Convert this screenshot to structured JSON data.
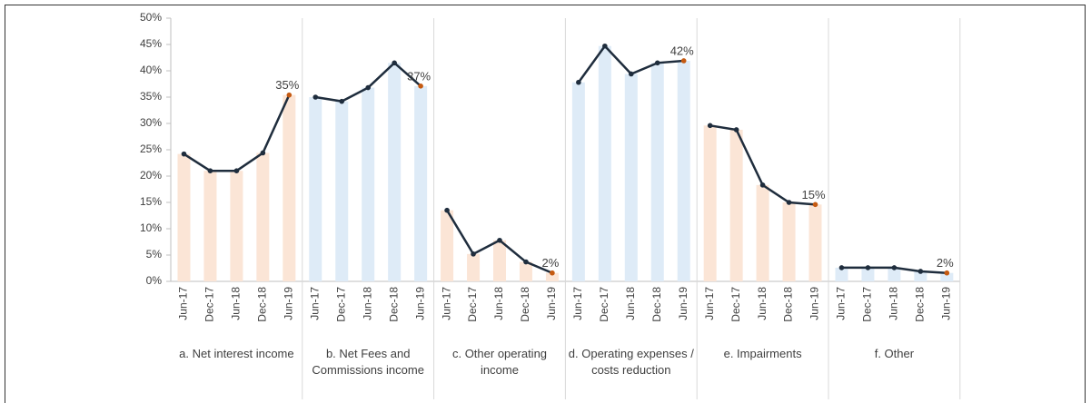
{
  "chart_data": {
    "type": "line",
    "ylim": [
      0,
      50
    ],
    "yticks": [
      {
        "value": 0,
        "label": "0%"
      },
      {
        "value": 5,
        "label": "5%"
      },
      {
        "value": 10,
        "label": "10%"
      },
      {
        "value": 15,
        "label": "15%"
      },
      {
        "value": 20,
        "label": "20%"
      },
      {
        "value": 25,
        "label": "25%"
      },
      {
        "value": 30,
        "label": "30%"
      },
      {
        "value": 35,
        "label": "35%"
      },
      {
        "value": 40,
        "label": "40%"
      },
      {
        "value": 45,
        "label": "45%"
      },
      {
        "value": 50,
        "label": "50%"
      }
    ],
    "line_color": "#1f2d3d",
    "highlight_color": "#c55a11",
    "panels": [
      {
        "label": "a. Net interest income",
        "bar_color": "#fbe5d6",
        "categories": [
          "Jun-17",
          "Dec-17",
          "Jun-18",
          "Dec-18",
          "Jun-19"
        ],
        "values": [
          24.2,
          21,
          21,
          24.4,
          35.4
        ],
        "value_labels": [
          null,
          null,
          null,
          null,
          "35%"
        ]
      },
      {
        "label": "b. Net Fees and Commissions income",
        "bar_color": "#deebf7",
        "categories": [
          "Jun-17",
          "Dec-17",
          "Jun-18",
          "Dec-18",
          "Jun-19"
        ],
        "values": [
          35,
          34.2,
          36.8,
          41.5,
          37.1
        ],
        "value_labels": [
          null,
          null,
          null,
          null,
          "37%"
        ]
      },
      {
        "label": "c. Other operating income",
        "bar_color": "#fbe5d6",
        "categories": [
          "Jun-17",
          "Dec-17",
          "Jun-18",
          "Dec-18",
          "Jun-19"
        ],
        "values": [
          13.5,
          5.2,
          7.8,
          3.7,
          1.6
        ],
        "value_labels": [
          null,
          null,
          null,
          null,
          "2%"
        ]
      },
      {
        "label": "d. Operating expenses / costs reduction",
        "bar_color": "#deebf7",
        "categories": [
          "Jun-17",
          "Dec-17",
          "Jun-18",
          "Dec-18",
          "Jun-19"
        ],
        "values": [
          37.8,
          44.7,
          39.4,
          41.5,
          41.9
        ],
        "value_labels": [
          null,
          null,
          null,
          null,
          "42%"
        ]
      },
      {
        "label": "e. Impairments",
        "bar_color": "#fbe5d6",
        "categories": [
          "Jun-17",
          "Dec-17",
          "Jun-18",
          "Dec-18",
          "Jun-19"
        ],
        "values": [
          29.6,
          28.8,
          18.3,
          15,
          14.6
        ],
        "value_labels": [
          null,
          null,
          null,
          null,
          "15%"
        ]
      },
      {
        "label": "f. Other",
        "bar_color": "#deebf7",
        "categories": [
          "Jun-17",
          "Dec-17",
          "Jun-18",
          "Dec-18",
          "Jun-19"
        ],
        "values": [
          2.6,
          2.6,
          2.6,
          1.9,
          1.6
        ],
        "value_labels": [
          null,
          null,
          null,
          null,
          "2%"
        ]
      }
    ]
  }
}
